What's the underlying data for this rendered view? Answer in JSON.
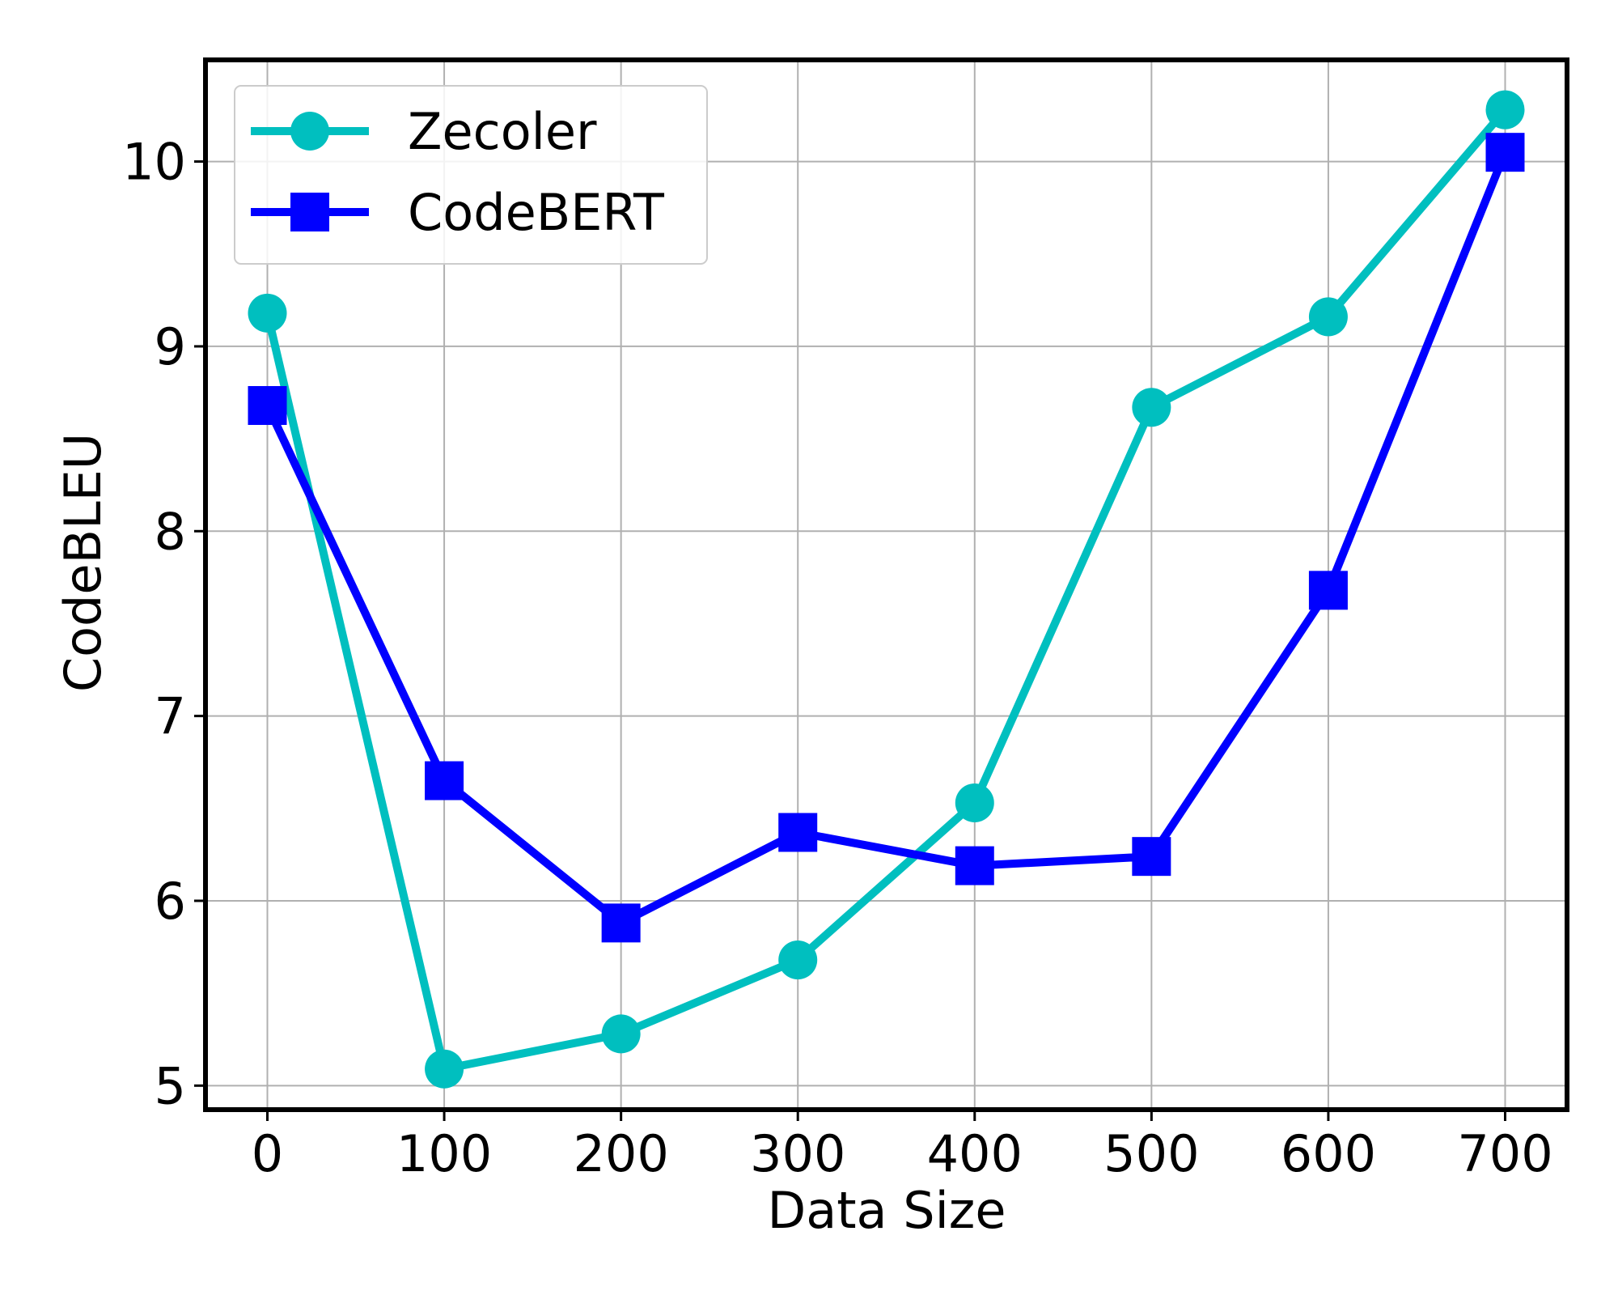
{
  "chart_data": {
    "type": "line",
    "xlabel": "Data Size",
    "ylabel": "CodeBLEU",
    "xlim": [
      -35,
      735
    ],
    "ylim": [
      4.87,
      10.55
    ],
    "xticks": [
      0,
      100,
      200,
      300,
      400,
      500,
      600,
      700
    ],
    "xtick_labels": [
      "0",
      "100",
      "200",
      "300",
      "400",
      "500",
      "600",
      "700"
    ],
    "yticks": [
      5,
      6,
      7,
      8,
      9,
      10
    ],
    "ytick_labels": [
      "5",
      "6",
      "7",
      "8",
      "9",
      "10"
    ],
    "grid": true,
    "legend_position": "top-left",
    "x": [
      0,
      100,
      200,
      300,
      400,
      500,
      600,
      700
    ],
    "series": [
      {
        "name": "Zecoler",
        "marker": "circle",
        "color": "#00bfbf",
        "values": [
          9.18,
          5.09,
          5.28,
          5.68,
          6.53,
          8.67,
          9.16,
          10.28
        ]
      },
      {
        "name": "CodeBERT",
        "marker": "square",
        "color": "#0000ff",
        "values": [
          8.68,
          6.65,
          5.88,
          6.37,
          6.19,
          6.24,
          7.68,
          10.05
        ]
      }
    ]
  }
}
